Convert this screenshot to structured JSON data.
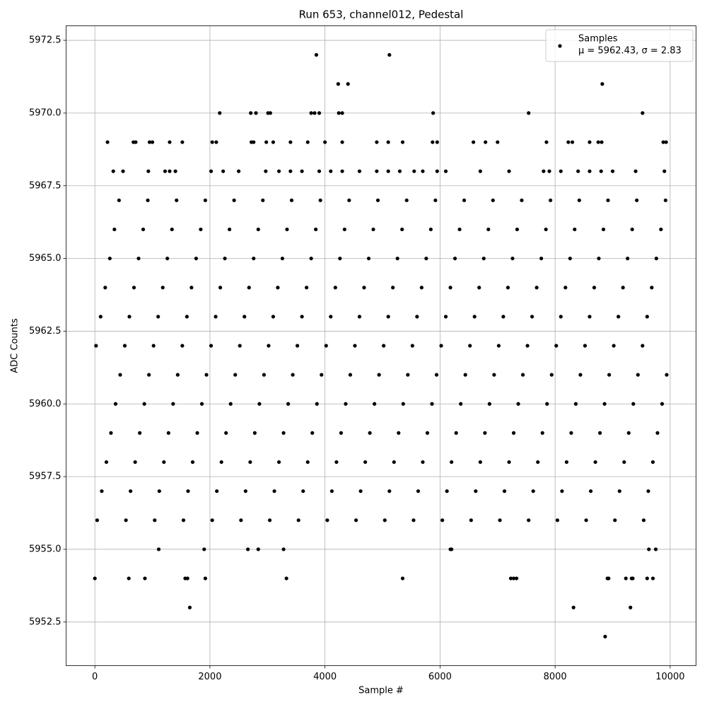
{
  "chart_data": {
    "type": "scatter",
    "title": "Run 653, channel012, Pedestal",
    "x_label": "Sample #",
    "y_label": "ADC Counts",
    "legend_position": "upper right",
    "legend_note": "μ = 5962.43, σ = 2.83",
    "grid": true,
    "xlim": [
      -500,
      10450
    ],
    "ylim": [
      5951.0,
      5973.0
    ],
    "xticks": [
      0,
      2000,
      4000,
      6000,
      8000,
      10000
    ],
    "yticks": [
      5952.5,
      {
        "value": 5955,
        "label": "5955.0"
      },
      5957.5,
      {
        "value": 5960,
        "label": "5960.0"
      },
      5962.5,
      {
        "value": 5965,
        "label": "5965.0"
      },
      5967.5,
      {
        "value": 5970,
        "label": "5970.0"
      },
      5972.5
    ],
    "series": [
      {
        "name": "Samples",
        "color": "#000000",
        "x": [
          3850,
          5120,
          4230,
          4400,
          8820,
          2170,
          2710,
          2800,
          3010,
          3050,
          3760,
          3820,
          3900,
          4240,
          4300,
          5880,
          7540,
          9520,
          220,
          670,
          710,
          950,
          1000,
          1300,
          1520,
          2040,
          2110,
          2720,
          2760,
          2980,
          3100,
          3400,
          3700,
          4000,
          4300,
          4900,
          5100,
          5350,
          5870,
          5950,
          6580,
          6790,
          7000,
          7850,
          8230,
          8300,
          8600,
          8750,
          8810,
          9880,
          9930,
          320,
          490,
          930,
          1220,
          1300,
          1400,
          2020,
          2230,
          2500,
          2970,
          3200,
          3400,
          3600,
          3900,
          4100,
          4300,
          4600,
          4900,
          5100,
          5300,
          5550,
          5700,
          5950,
          6100,
          6700,
          7200,
          7800,
          7900,
          8100,
          8400,
          8600,
          8800,
          9000,
          9400,
          9900,
          1110,
          1900,
          2660,
          2840,
          3280,
          6180,
          6200,
          9630,
          9750,
          0,
          590,
          870,
          1570,
          1610,
          1920,
          3330,
          5350,
          7230,
          7280,
          7330,
          8910,
          8930,
          9230,
          9330,
          9350,
          9600,
          9700,
          1650,
          8320,
          9310,
          8870,
          40,
          540,
          1040,
          1540,
          2040,
          2540,
          3040,
          3540,
          4040,
          4540,
          5040,
          5540,
          6040,
          6540,
          7040,
          7540,
          8040,
          8540,
          9040,
          9540,
          120,
          620,
          1120,
          1620,
          2120,
          2620,
          3120,
          3620,
          4120,
          4620,
          5120,
          5620,
          6120,
          6620,
          7120,
          7620,
          8120,
          8620,
          9120,
          9620,
          200,
          700,
          1200,
          1700,
          2200,
          2700,
          3200,
          3700,
          4200,
          4700,
          5200,
          5700,
          6200,
          6700,
          7200,
          7700,
          8200,
          8700,
          9200,
          9700,
          280,
          780,
          1280,
          1780,
          2280,
          2780,
          3280,
          3780,
          4280,
          4780,
          5280,
          5780,
          6280,
          6780,
          7280,
          7780,
          8280,
          8780,
          9280,
          9780,
          360,
          860,
          1360,
          1860,
          2360,
          2860,
          3360,
          3860,
          4360,
          4860,
          5360,
          5860,
          6360,
          6860,
          7360,
          7860,
          8360,
          8860,
          9360,
          9860,
          440,
          940,
          1440,
          1940,
          2440,
          2940,
          3440,
          3940,
          4440,
          4940,
          5440,
          5940,
          6440,
          6940,
          7440,
          7940,
          8440,
          8940,
          9440,
          9940,
          20,
          520,
          1020,
          1520,
          2020,
          2520,
          3020,
          3520,
          4020,
          4520,
          5020,
          5520,
          6020,
          6520,
          7020,
          7520,
          8020,
          8520,
          9020,
          9520,
          100,
          600,
          1100,
          1600,
          2100,
          2600,
          3100,
          3600,
          4100,
          4600,
          5100,
          5600,
          6100,
          6600,
          7100,
          7600,
          8100,
          8600,
          9100,
          9600,
          180,
          680,
          1180,
          1680,
          2180,
          2680,
          3180,
          3680,
          4180,
          4680,
          5180,
          5680,
          6180,
          6680,
          7180,
          7680,
          8180,
          8680,
          9180,
          9680,
          260,
          760,
          1260,
          1760,
          2260,
          2760,
          3260,
          3760,
          4260,
          4760,
          5260,
          5760,
          6260,
          6760,
          7260,
          7760,
          8260,
          8760,
          9260,
          9760,
          340,
          840,
          1340,
          1840,
          2340,
          2840,
          3340,
          3840,
          4340,
          4840,
          5340,
          5840,
          6340,
          6840,
          7340,
          7840,
          8340,
          8840,
          9340,
          9840,
          420,
          920,
          1420,
          1920,
          2420,
          2920,
          3420,
          3920,
          4420,
          4920,
          5420,
          5920,
          6420,
          6920,
          7420,
          7920,
          8420,
          8920,
          9420,
          9920
        ],
        "values": [
          5972,
          5972,
          5971,
          5971,
          5971,
          5970,
          5970,
          5970,
          5970,
          5970,
          5970,
          5970,
          5970,
          5970,
          5970,
          5970,
          5970,
          5970,
          5969,
          5969,
          5969,
          5969,
          5969,
          5969,
          5969,
          5969,
          5969,
          5969,
          5969,
          5969,
          5969,
          5969,
          5969,
          5969,
          5969,
          5969,
          5969,
          5969,
          5969,
          5969,
          5969,
          5969,
          5969,
          5969,
          5969,
          5969,
          5969,
          5969,
          5969,
          5969,
          5969,
          5968,
          5968,
          5968,
          5968,
          5968,
          5968,
          5968,
          5968,
          5968,
          5968,
          5968,
          5968,
          5968,
          5968,
          5968,
          5968,
          5968,
          5968,
          5968,
          5968,
          5968,
          5968,
          5968,
          5968,
          5968,
          5968,
          5968,
          5968,
          5968,
          5968,
          5968,
          5968,
          5968,
          5968,
          5968,
          5955,
          5955,
          5955,
          5955,
          5955,
          5955,
          5955,
          5955,
          5955,
          5954,
          5954,
          5954,
          5954,
          5954,
          5954,
          5954,
          5954,
          5954,
          5954,
          5954,
          5954,
          5954,
          5954,
          5954,
          5954,
          5954,
          5954,
          5953,
          5953,
          5953,
          5952,
          5956,
          5956,
          5956,
          5956,
          5956,
          5956,
          5956,
          5956,
          5956,
          5956,
          5956,
          5956,
          5956,
          5956,
          5956,
          5956,
          5956,
          5956,
          5956,
          5956,
          5957,
          5957,
          5957,
          5957,
          5957,
          5957,
          5957,
          5957,
          5957,
          5957,
          5957,
          5957,
          5957,
          5957,
          5957,
          5957,
          5957,
          5957,
          5957,
          5957,
          5958,
          5958,
          5958,
          5958,
          5958,
          5958,
          5958,
          5958,
          5958,
          5958,
          5958,
          5958,
          5958,
          5958,
          5958,
          5958,
          5958,
          5958,
          5958,
          5958,
          5959,
          5959,
          5959,
          5959,
          5959,
          5959,
          5959,
          5959,
          5959,
          5959,
          5959,
          5959,
          5959,
          5959,
          5959,
          5959,
          5959,
          5959,
          5959,
          5959,
          5960,
          5960,
          5960,
          5960,
          5960,
          5960,
          5960,
          5960,
          5960,
          5960,
          5960,
          5960,
          5960,
          5960,
          5960,
          5960,
          5960,
          5960,
          5960,
          5960,
          5961,
          5961,
          5961,
          5961,
          5961,
          5961,
          5961,
          5961,
          5961,
          5961,
          5961,
          5961,
          5961,
          5961,
          5961,
          5961,
          5961,
          5961,
          5961,
          5961,
          5962,
          5962,
          5962,
          5962,
          5962,
          5962,
          5962,
          5962,
          5962,
          5962,
          5962,
          5962,
          5962,
          5962,
          5962,
          5962,
          5962,
          5962,
          5962,
          5962,
          5963,
          5963,
          5963,
          5963,
          5963,
          5963,
          5963,
          5963,
          5963,
          5963,
          5963,
          5963,
          5963,
          5963,
          5963,
          5963,
          5963,
          5963,
          5963,
          5963,
          5964,
          5964,
          5964,
          5964,
          5964,
          5964,
          5964,
          5964,
          5964,
          5964,
          5964,
          5964,
          5964,
          5964,
          5964,
          5964,
          5964,
          5964,
          5964,
          5964,
          5965,
          5965,
          5965,
          5965,
          5965,
          5965,
          5965,
          5965,
          5965,
          5965,
          5965,
          5965,
          5965,
          5965,
          5965,
          5965,
          5965,
          5965,
          5965,
          5965,
          5966,
          5966,
          5966,
          5966,
          5966,
          5966,
          5966,
          5966,
          5966,
          5966,
          5966,
          5966,
          5966,
          5966,
          5966,
          5966,
          5966,
          5966,
          5966,
          5966,
          5967,
          5967,
          5967,
          5967,
          5967,
          5967,
          5967,
          5967,
          5967,
          5967,
          5967,
          5967,
          5967,
          5967,
          5967,
          5967,
          5967,
          5967,
          5967,
          5967
        ]
      }
    ]
  }
}
